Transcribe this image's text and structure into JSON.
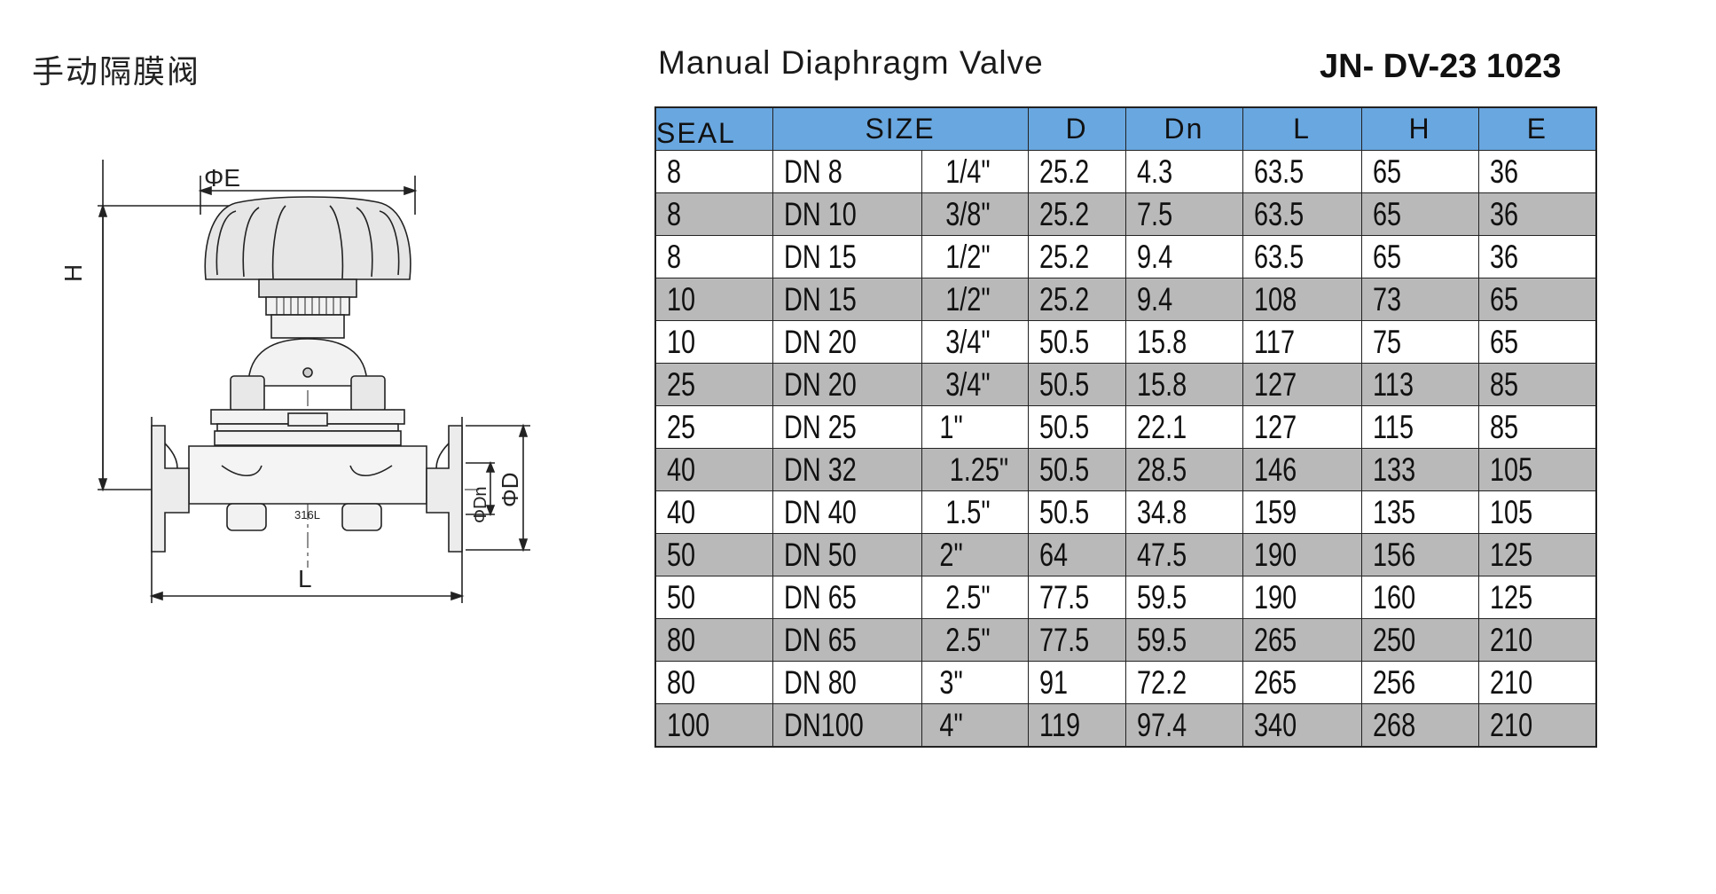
{
  "header": {
    "title_cn": "手动隔膜阀",
    "title_en": "Manual Diaphragm Valve",
    "model": "JN- DV-23 1023"
  },
  "drawing": {
    "label_e": "ΦE",
    "label_h": "H",
    "label_l": "L",
    "label_dn": "ΦDn",
    "label_d": "ΦD",
    "material": "316L"
  },
  "table": {
    "headers": [
      "SEAL",
      "SIZE",
      "D",
      "Dn",
      "L",
      "H",
      "E"
    ],
    "rows": [
      {
        "seal": "8",
        "dn": "DN 8",
        "inch": "1/4\"",
        "d": "25.2",
        "dni": "4.3",
        "l": "63.5",
        "h": "65",
        "e": "36"
      },
      {
        "seal": "8",
        "dn": "DN 10",
        "inch": "3/8\"",
        "d": "25.2",
        "dni": "7.5",
        "l": "63.5",
        "h": "65",
        "e": "36"
      },
      {
        "seal": "8",
        "dn": "DN 15",
        "inch": "1/2\"",
        "d": "25.2",
        "dni": "9.4",
        "l": "63.5",
        "h": "65",
        "e": "36"
      },
      {
        "seal": "10",
        "dn": "DN 15",
        "inch": "1/2\"",
        "d": "25.2",
        "dni": "9.4",
        "l": "108",
        "h": "73",
        "e": "65"
      },
      {
        "seal": "10",
        "dn": "DN 20",
        "inch": "3/4\"",
        "d": "50.5",
        "dni": "15.8",
        "l": "117",
        "h": "75",
        "e": "65"
      },
      {
        "seal": "25",
        "dn": "DN 20",
        "inch": "3/4\"",
        "d": "50.5",
        "dni": "15.8",
        "l": "127",
        "h": "113",
        "e": "85"
      },
      {
        "seal": "25",
        "dn": "DN 25",
        "inch": "1\"",
        "d": "50.5",
        "dni": "22.1",
        "l": "127",
        "h": "115",
        "e": "85"
      },
      {
        "seal": "40",
        "dn": "DN 32",
        "inch": "1.25\"",
        "d": "50.5",
        "dni": "28.5",
        "l": "146",
        "h": "133",
        "e": "105"
      },
      {
        "seal": "40",
        "dn": "DN 40",
        "inch": "1.5\"",
        "d": "50.5",
        "dni": "34.8",
        "l": "159",
        "h": "135",
        "e": "105"
      },
      {
        "seal": "50",
        "dn": "DN 50",
        "inch": "2\"",
        "d": "64",
        "dni": "47.5",
        "l": "190",
        "h": "156",
        "e": "125"
      },
      {
        "seal": "50",
        "dn": "DN 65",
        "inch": "2.5\"",
        "d": "77.5",
        "dni": "59.5",
        "l": "190",
        "h": "160",
        "e": "125"
      },
      {
        "seal": "80",
        "dn": "DN 65",
        "inch": "2.5\"",
        "d": "77.5",
        "dni": "59.5",
        "l": "265",
        "h": "250",
        "e": "210"
      },
      {
        "seal": "80",
        "dn": "DN 80",
        "inch": "3\"",
        "d": "91",
        "dni": "72.2",
        "l": "265",
        "h": "256",
        "e": "210"
      },
      {
        "seal": "100",
        "dn": "DN100",
        "inch": "4\"",
        "d": "119",
        "dni": "97.4",
        "l": "340",
        "h": "268",
        "e": "210"
      }
    ]
  },
  "colors": {
    "header_bg": "#69a7e0",
    "alt_row_bg": "#b9b9b9"
  }
}
